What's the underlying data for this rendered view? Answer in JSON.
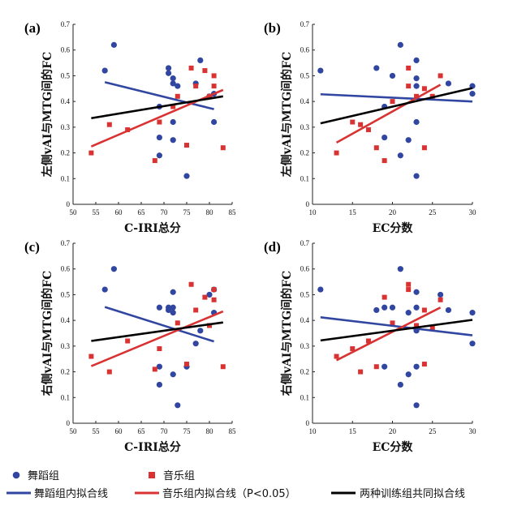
{
  "colors": {
    "dance": "#3146a0",
    "music": "#d83232",
    "common": "#000000"
  },
  "legend": {
    "dance": "舞蹈组",
    "music": "音乐组",
    "dance_fit": "舞蹈组内拟合线",
    "music_fit": "音乐组内拟合线（P<0.05）",
    "common_fit": "两种训练组共同拟合线"
  },
  "chart_data": [
    {
      "type": "scatter",
      "tag": "(a)",
      "xlabel": "C-IRI总分",
      "ylabel": "左侧vAI与MTG间的FC",
      "xlim": [
        50,
        85
      ],
      "xticks": [
        50,
        55,
        60,
        65,
        70,
        75,
        80,
        85
      ],
      "ylim": [
        0,
        0.7
      ],
      "yticks": [
        "0",
        "0.1",
        "0.2",
        "0.3",
        "0.4",
        "0.5",
        "0.6",
        "0.7"
      ],
      "dance": {
        "x": [
          57,
          59,
          69,
          69,
          69,
          71,
          71,
          72,
          72,
          72,
          72,
          73,
          75,
          77,
          78,
          80,
          81,
          81
        ],
        "y": [
          0.52,
          0.62,
          0.38,
          0.26,
          0.19,
          0.53,
          0.51,
          0.49,
          0.47,
          0.32,
          0.25,
          0.46,
          0.11,
          0.47,
          0.56,
          0.42,
          0.43,
          0.32
        ]
      },
      "music": {
        "x": [
          54,
          58,
          62,
          68,
          69,
          72,
          73,
          75,
          76,
          77,
          79,
          80,
          81,
          81,
          83
        ],
        "y": [
          0.2,
          0.31,
          0.29,
          0.17,
          0.32,
          0.38,
          0.42,
          0.23,
          0.53,
          0.46,
          0.52,
          0.42,
          0.5,
          0.46,
          0.22
        ]
      },
      "fits": {
        "dance": [
          [
            57,
            0.475
          ],
          [
            81,
            0.37
          ]
        ],
        "music": [
          [
            54,
            0.225
          ],
          [
            83,
            0.445
          ]
        ],
        "common": [
          [
            54,
            0.335
          ],
          [
            83,
            0.42
          ]
        ]
      }
    },
    {
      "type": "scatter",
      "tag": "(b)",
      "xlabel": "EC分数",
      "ylabel": "左侧vAI与MTG间的FC",
      "xlim": [
        10,
        30
      ],
      "xticks": [
        10,
        15,
        20,
        25,
        30
      ],
      "ylim": [
        0,
        0.7
      ],
      "yticks": [
        "0",
        "0.1",
        "0.2",
        "0.3",
        "0.4",
        "0.5",
        "0.6",
        "0.7"
      ],
      "dance": {
        "x": [
          11,
          18,
          19,
          19,
          20,
          21,
          21,
          22,
          23,
          23,
          23,
          23,
          23,
          27,
          30,
          30
        ],
        "y": [
          0.52,
          0.53,
          0.38,
          0.26,
          0.5,
          0.62,
          0.19,
          0.25,
          0.56,
          0.46,
          0.32,
          0.49,
          0.11,
          0.47,
          0.46,
          0.43
        ]
      },
      "music": {
        "x": [
          13,
          15,
          16,
          17,
          18,
          19,
          20,
          22,
          22,
          23,
          24,
          24,
          25,
          26
        ],
        "y": [
          0.2,
          0.32,
          0.31,
          0.29,
          0.22,
          0.17,
          0.4,
          0.46,
          0.53,
          0.42,
          0.45,
          0.22,
          0.42,
          0.5
        ]
      },
      "fits": {
        "dance": [
          [
            11,
            0.428
          ],
          [
            30,
            0.4
          ]
        ],
        "music": [
          [
            13,
            0.24
          ],
          [
            26,
            0.465
          ]
        ],
        "common": [
          [
            11,
            0.315
          ],
          [
            30,
            0.452
          ]
        ]
      }
    },
    {
      "type": "scatter",
      "tag": "(c)",
      "xlabel": "C-IRI总分",
      "ylabel": "右侧vAI与MTG间的FC",
      "xlim": [
        50,
        85
      ],
      "xticks": [
        50,
        55,
        60,
        65,
        70,
        75,
        80,
        85
      ],
      "ylim": [
        0,
        0.7
      ],
      "yticks": [
        "0",
        "0.1",
        "0.2",
        "0.3",
        "0.4",
        "0.5",
        "0.6",
        "0.7"
      ],
      "dance": {
        "x": [
          57,
          59,
          69,
          69,
          69,
          71,
          71,
          72,
          72,
          72,
          72,
          73,
          75,
          77,
          78,
          80,
          81,
          81
        ],
        "y": [
          0.52,
          0.6,
          0.45,
          0.22,
          0.15,
          0.44,
          0.45,
          0.51,
          0.45,
          0.43,
          0.19,
          0.07,
          0.22,
          0.31,
          0.36,
          0.5,
          0.52,
          0.43
        ]
      },
      "music": {
        "x": [
          54,
          58,
          62,
          68,
          69,
          73,
          75,
          76,
          77,
          79,
          80,
          81,
          81,
          83
        ],
        "y": [
          0.26,
          0.2,
          0.32,
          0.21,
          0.29,
          0.39,
          0.23,
          0.54,
          0.44,
          0.49,
          0.38,
          0.52,
          0.48,
          0.22
        ]
      },
      "fits": {
        "dance": [
          [
            57,
            0.452
          ],
          [
            81,
            0.318
          ]
        ],
        "music": [
          [
            54,
            0.222
          ],
          [
            83,
            0.435
          ]
        ],
        "common": [
          [
            54,
            0.32
          ],
          [
            83,
            0.392
          ]
        ]
      }
    },
    {
      "type": "scatter",
      "tag": "(d)",
      "xlabel": "EC分数",
      "ylabel": "右侧vAI与MTG间的FC",
      "xlim": [
        10,
        30
      ],
      "xticks": [
        10,
        15,
        20,
        25,
        30
      ],
      "ylim": [
        0,
        0.7
      ],
      "yticks": [
        "0",
        "0.1",
        "0.2",
        "0.3",
        "0.4",
        "0.5",
        "0.6",
        "0.7"
      ],
      "dance": {
        "x": [
          11,
          18,
          19,
          19,
          20,
          21,
          21,
          22,
          22,
          23,
          23,
          23,
          23,
          23,
          26,
          27,
          30,
          30
        ],
        "y": [
          0.52,
          0.44,
          0.45,
          0.22,
          0.45,
          0.6,
          0.15,
          0.43,
          0.19,
          0.51,
          0.45,
          0.36,
          0.22,
          0.07,
          0.5,
          0.44,
          0.31,
          0.43
        ]
      },
      "music": {
        "x": [
          13,
          15,
          16,
          17,
          18,
          19,
          20,
          22,
          22,
          23,
          24,
          24,
          25,
          26
        ],
        "y": [
          0.26,
          0.29,
          0.2,
          0.32,
          0.22,
          0.49,
          0.39,
          0.54,
          0.52,
          0.38,
          0.44,
          0.23,
          0.37,
          0.48
        ]
      },
      "fits": {
        "dance": [
          [
            11,
            0.412
          ],
          [
            30,
            0.342
          ]
        ],
        "music": [
          [
            13,
            0.245
          ],
          [
            26,
            0.45
          ]
        ],
        "common": [
          [
            11,
            0.322
          ],
          [
            30,
            0.402
          ]
        ]
      }
    }
  ]
}
